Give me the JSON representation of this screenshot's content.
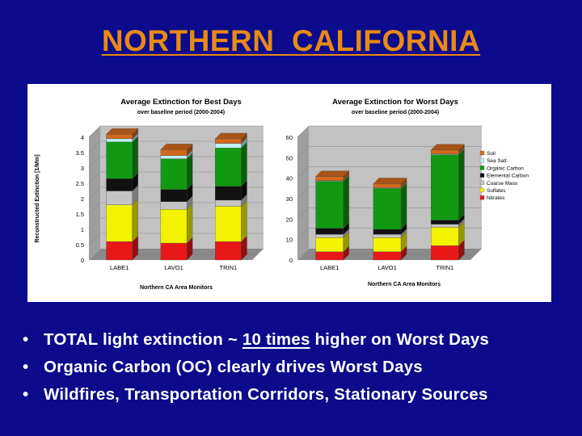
{
  "slide": {
    "title": "NORTHERN  CALIFORNIA",
    "bullets": [
      {
        "before": "TOTAL light extinction ~ ",
        "underlined": "10 times",
        "after": "  higher on Worst Days"
      },
      {
        "before": "Organic Carbon (OC) clearly drives Worst Days",
        "underlined": "",
        "after": ""
      },
      {
        "before": "Wildfires, Transportation Corridors, Stationary Sources",
        "underlined": "",
        "after": ""
      }
    ],
    "bullet_glyph": "•"
  },
  "colors": {
    "background": "#0b0b8c",
    "title": "#e88a14",
    "Soil": "#d2691e",
    "Sea Salt": "#bfefff",
    "Organic Carbon": "#119911",
    "Elemental Carbon": "#111111",
    "Coarse Mass": "#c4c4c4",
    "Sulfates": "#f3f300",
    "Nitrates": "#e81818"
  },
  "chart_data": [
    {
      "type": "bar",
      "stacked": true,
      "title": "Average Extinction for Best Days",
      "subtitle": "over baseline period (2000-2004)",
      "xlabel": "Northern CA Area Monitors",
      "ylabel": "Reconstructed Extinction [1/Mm]",
      "categories": [
        "LABE1",
        "LAVO1",
        "TRIN1"
      ],
      "ylim": [
        0,
        4
      ],
      "yticks": [
        0,
        0.5,
        1,
        1.5,
        2,
        2.5,
        3,
        3.5,
        4
      ],
      "series": [
        {
          "name": "Nitrates",
          "values": [
            0.6,
            0.55,
            0.6
          ]
        },
        {
          "name": "Sulfates",
          "values": [
            1.2,
            1.1,
            1.15
          ]
        },
        {
          "name": "Coarse Mass",
          "values": [
            0.45,
            0.25,
            0.2
          ]
        },
        {
          "name": "Elemental Carbon",
          "values": [
            0.4,
            0.4,
            0.45
          ]
        },
        {
          "name": "Organic Carbon",
          "values": [
            1.2,
            1.0,
            1.25
          ]
        },
        {
          "name": "Sea Salt",
          "values": [
            0.1,
            0.1,
            0.15
          ]
        },
        {
          "name": "Soil",
          "values": [
            0.15,
            0.2,
            0.15
          ]
        }
      ]
    },
    {
      "type": "bar",
      "stacked": true,
      "title": "Average Extinction for Worst Days",
      "subtitle": "over baseline period (2000-2004)",
      "xlabel": "Northern CA Area Monitors",
      "ylabel": "",
      "categories": [
        "LABE1",
        "LAVO1",
        "TRIN1"
      ],
      "ylim": [
        0,
        60
      ],
      "yticks": [
        0,
        10,
        20,
        30,
        40,
        50,
        60
      ],
      "legend_position": "right",
      "legend": [
        "Soil",
        "Sea Salt",
        "Organic Carbon",
        "Elemental Carbon",
        "Coarse Mass",
        "Sulfates",
        "Nitrates"
      ],
      "series": [
        {
          "name": "Nitrates",
          "values": [
            4,
            4,
            7
          ]
        },
        {
          "name": "Sulfates",
          "values": [
            7,
            7,
            9
          ]
        },
        {
          "name": "Coarse Mass",
          "values": [
            1.5,
            1.5,
            1.5
          ]
        },
        {
          "name": "Elemental Carbon",
          "values": [
            3,
            2.5,
            2
          ]
        },
        {
          "name": "Organic Carbon",
          "values": [
            23,
            20,
            32
          ]
        },
        {
          "name": "Sea Salt",
          "values": [
            0.3,
            0.3,
            0.3
          ]
        },
        {
          "name": "Soil",
          "values": [
            2,
            2,
            2
          ]
        }
      ]
    }
  ]
}
